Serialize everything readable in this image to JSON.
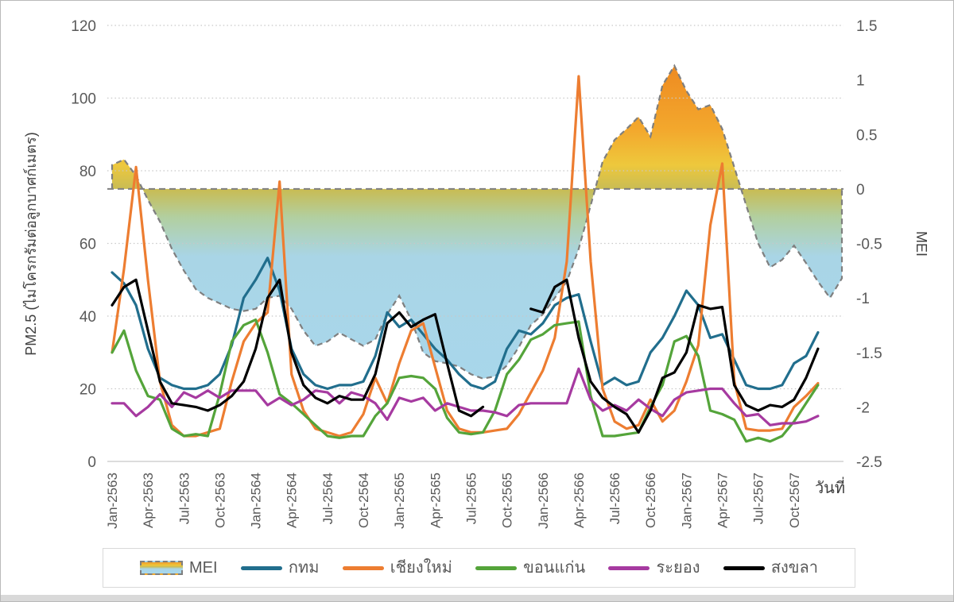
{
  "chart_data": {
    "type": "line",
    "title": "",
    "x_label": "วันที่",
    "x_start": "Jan-2563",
    "x_end_lines": "Dec-2567",
    "x_tick_labels": [
      "Jan-2563",
      "Apr-2563",
      "Jul-2563",
      "Oct-2563",
      "Jan-2564",
      "Apr-2564",
      "Jul-2564",
      "Oct-2564",
      "Jan-2565",
      "Apr-2565",
      "Jul-2565",
      "Oct-2565",
      "Jan-2566",
      "Apr-2566",
      "Jul-2566",
      "Oct-2566",
      "Jan-2567",
      "Apr-2567",
      "Jul-2567",
      "Oct-2567"
    ],
    "axes": {
      "left": {
        "label": "PM2.5 (ไมโครกรัมต่อลูกบาศก์เมตร)",
        "min": 0,
        "max": 120,
        "step": 20
      },
      "right": {
        "label": "MEI",
        "min": -2.5,
        "max": 1.5,
        "step": 0.5
      }
    },
    "grid": "dotted horizontal",
    "legend_position": "bottom",
    "mei": {
      "name": "MEI",
      "style": "area between curve and zero line, dashed gray outline, warm gradient above 0 / light blue below 0",
      "outline_color": "#7f7f7f",
      "fill_top_orange": "#e8791f",
      "fill_gold": "#eec83c",
      "fill_zero_olive": "#c8bc55",
      "fill_bottom_blue": "#a8d8ee",
      "values": [
        0.22,
        0.27,
        0.12,
        -0.1,
        -0.3,
        -0.55,
        -0.75,
        -0.92,
        -1.0,
        -1.05,
        -1.1,
        -1.12,
        -1.1,
        -1.0,
        -0.98,
        -1.1,
        -1.3,
        -1.44,
        -1.4,
        -1.32,
        -1.38,
        -1.44,
        -1.38,
        -1.15,
        -0.98,
        -1.2,
        -1.5,
        -1.58,
        -1.6,
        -1.63,
        -1.7,
        -1.74,
        -1.72,
        -1.62,
        -1.45,
        -1.25,
        -1.15,
        -1.0,
        -0.85,
        -0.55,
        -0.15,
        0.25,
        0.45,
        0.55,
        0.66,
        0.48,
        0.95,
        1.13,
        0.9,
        0.73,
        0.77,
        0.55,
        0.2,
        -0.15,
        -0.5,
        -0.72,
        -0.65,
        -0.52,
        -0.68,
        -0.85,
        -1.0,
        -0.82
      ]
    },
    "series": [
      {
        "key": "bangkok",
        "name": "กทม",
        "color": "#216e8d",
        "values": [
          52,
          49,
          43,
          31,
          23,
          21,
          20,
          20,
          21,
          24,
          32,
          45,
          50,
          56,
          47,
          31,
          24,
          21,
          20,
          21,
          21,
          22,
          29,
          41,
          37,
          39,
          35,
          31,
          28,
          24,
          21,
          20,
          22,
          31,
          36,
          35,
          38,
          43,
          45,
          46,
          33,
          21,
          23,
          21,
          22,
          30,
          34,
          40,
          47,
          43,
          34,
          35,
          28,
          21,
          20,
          20,
          21,
          27,
          29,
          35.5
        ]
      },
      {
        "key": "chiangmai",
        "name": "เชียงใหม่",
        "color": "#ed7d31",
        "values": [
          30,
          53,
          81,
          50,
          22,
          10,
          7,
          7,
          8,
          9,
          22,
          33,
          38,
          41,
          77,
          24,
          14,
          9,
          8,
          7,
          8,
          13,
          23,
          16,
          27,
          36,
          38,
          26,
          14,
          9,
          8,
          8,
          8.5,
          9,
          13,
          19,
          25,
          34,
          55,
          106,
          55,
          20,
          11,
          9,
          10,
          17,
          11,
          14,
          22,
          32,
          65,
          82,
          22,
          9,
          8.5,
          8.5,
          9,
          15,
          18,
          21.5
        ]
      },
      {
        "key": "khonkaen",
        "name": "ขอนแก่น",
        "color": "#54a43a",
        "values": [
          30,
          36,
          25,
          18,
          17,
          9,
          7,
          7.5,
          7,
          18.5,
          33,
          37.5,
          39,
          30,
          18.5,
          16,
          13,
          10,
          7,
          6.5,
          7,
          7,
          12.5,
          16,
          23,
          23.5,
          23,
          20,
          12,
          8,
          7.5,
          8,
          14,
          24,
          28,
          33.5,
          35,
          37.5,
          38,
          38.5,
          18,
          7,
          7,
          7.5,
          8,
          15,
          21,
          33,
          34.5,
          29,
          14,
          13,
          11.5,
          5.5,
          6.5,
          5.5,
          7,
          11,
          16,
          21
        ]
      },
      {
        "key": "rayong",
        "name": "ระยอง",
        "color": "#a63aa0",
        "values": [
          16,
          16,
          12.5,
          15,
          18.5,
          15,
          19,
          17.5,
          19.5,
          17.5,
          19.5,
          19.5,
          19.5,
          15.5,
          17.5,
          15.5,
          17,
          19.5,
          19,
          16,
          19,
          18,
          16,
          11.5,
          17.5,
          16.5,
          17.5,
          14,
          16,
          15,
          14,
          14,
          13.5,
          12.5,
          15.5,
          16,
          16,
          16,
          16,
          25.5,
          17,
          14,
          15.5,
          14,
          17,
          14.5,
          12.5,
          17,
          19,
          19.5,
          20,
          20,
          16,
          12.5,
          13,
          10,
          10.5,
          10.5,
          11,
          12.5
        ]
      },
      {
        "key": "songkhla",
        "name": "สงขลา",
        "color": "#000000",
        "values": [
          43,
          48,
          50,
          36,
          22,
          16,
          15.5,
          15,
          14,
          15.5,
          18,
          22,
          31,
          45,
          50,
          30,
          21,
          17.5,
          16,
          18,
          17,
          17,
          24,
          38,
          41,
          37,
          39,
          40.5,
          27,
          14,
          12.5,
          15,
          null,
          null,
          null,
          42,
          41,
          48,
          50,
          34,
          22,
          17.5,
          15,
          13,
          8,
          14,
          23,
          24.5,
          30,
          43,
          42,
          42.5,
          21,
          15.5,
          14,
          15.5,
          15,
          17,
          23,
          31
        ]
      }
    ],
    "colors": {
      "grid": "#c8c8c8",
      "axis_text": "#595959",
      "zero_line": "#7f7f7f",
      "baseline": "#d0d0d0"
    }
  }
}
